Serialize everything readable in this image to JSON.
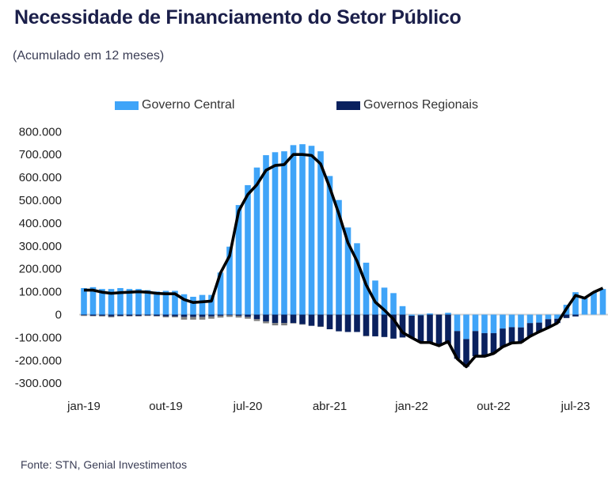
{
  "title": "Necessidade de Financiamento do Setor Público",
  "subtitle": "(Acumulado em 12 meses)",
  "source": "Fonte: STN, Genial Investimentos",
  "chart_data": {
    "type": "bar",
    "stacked": true,
    "title": "Necessidade de Financiamento do Setor Público",
    "subtitle": "(Acumulado em 12 meses)",
    "xlabel": "",
    "ylabel": "",
    "ylim": [
      -300000,
      800000
    ],
    "yticks": [
      "800.000",
      "700.000",
      "600.000",
      "500.000",
      "400.000",
      "300.000",
      "200.000",
      "100.000",
      "0",
      "-100.000",
      "-200.000",
      "-300.000"
    ],
    "ytick_values": [
      800000,
      700000,
      600000,
      500000,
      400000,
      300000,
      200000,
      100000,
      0,
      -100000,
      -200000,
      -300000
    ],
    "xtick_labels": [
      {
        "index": 0,
        "label": "jan-19"
      },
      {
        "index": 9,
        "label": "out-19"
      },
      {
        "index": 18,
        "label": "jul-20"
      },
      {
        "index": 27,
        "label": "abr-21"
      },
      {
        "index": 36,
        "label": "jan-22"
      },
      {
        "index": 45,
        "label": "out-22"
      },
      {
        "index": 54,
        "label": "jul-23"
      }
    ],
    "categories": [
      "jan-19",
      "fev-19",
      "mar-19",
      "abr-19",
      "mai-19",
      "jun-19",
      "jul-19",
      "ago-19",
      "set-19",
      "out-19",
      "nov-19",
      "dez-19",
      "jan-20",
      "fev-20",
      "mar-20",
      "abr-20",
      "mai-20",
      "jun-20",
      "jul-20",
      "ago-20",
      "set-20",
      "out-20",
      "nov-20",
      "dez-20",
      "jan-21",
      "fev-21",
      "mar-21",
      "abr-21",
      "mai-21",
      "jun-21",
      "jul-21",
      "ago-21",
      "set-21",
      "out-21",
      "nov-21",
      "dez-21",
      "jan-22",
      "fev-22",
      "mar-22",
      "abr-22",
      "mai-22",
      "jun-22",
      "jul-22",
      "ago-22",
      "set-22",
      "out-22",
      "nov-22",
      "dez-22",
      "jan-23",
      "fev-23",
      "mar-23",
      "abr-23",
      "mai-23",
      "jun-23",
      "jul-23",
      "ago-23",
      "set-23",
      "out-23"
    ],
    "legend_position": "top",
    "grid": false,
    "series": [
      {
        "name": "Governo Central",
        "type": "bar",
        "color": "#3fa4f8",
        "values": [
          116000,
          120000,
          112000,
          112000,
          116000,
          112000,
          112000,
          107000,
          101000,
          104000,
          104000,
          89000,
          78000,
          86000,
          86000,
          184000,
          297000,
          479000,
          566000,
          643000,
          697000,
          710000,
          714000,
          741000,
          745000,
          738000,
          714000,
          606000,
          501000,
          381000,
          312000,
          227000,
          149000,
          118000,
          94000,
          37000,
          -5000,
          -3000,
          5000,
          0,
          8000,
          -72000,
          -107000,
          -72000,
          -81000,
          -81000,
          -61000,
          -55000,
          -56000,
          -37000,
          -35000,
          -20000,
          -18000,
          43000,
          98000,
          72000,
          98000,
          112000
        ]
      },
      {
        "name": "Governos Regionais",
        "type": "bar",
        "color": "#0a215e",
        "values": [
          -3000,
          -5000,
          -5000,
          -8000,
          -6000,
          -6000,
          -6000,
          -4000,
          -6000,
          -8000,
          -8000,
          -10000,
          -10000,
          -10000,
          -8000,
          -5000,
          -3000,
          -5000,
          -10000,
          -20000,
          -30000,
          -37000,
          -37000,
          -37000,
          -42000,
          -49000,
          -52000,
          -64000,
          -73000,
          -76000,
          -76000,
          -93000,
          -95000,
          -98000,
          -105000,
          -100000,
          -96000,
          -119000,
          -127000,
          -136000,
          -128000,
          -121000,
          -121000,
          -110000,
          -101000,
          -89000,
          -80000,
          -69000,
          -66000,
          -58000,
          -40000,
          -37000,
          -19000,
          -15000,
          -8000,
          0,
          0,
          0
        ]
      },
      {
        "type": "bar",
        "color": "#808080",
        "values": [
          -3000,
          -2000,
          -3000,
          -4000,
          -2000,
          -2000,
          -2000,
          -2000,
          -2000,
          -4000,
          -4000,
          -12000,
          -12000,
          -12000,
          -10000,
          -8000,
          -7000,
          -8000,
          -8000,
          -8000,
          -8000,
          -10000,
          -10000,
          -2000,
          -2000,
          0,
          -2000,
          0,
          0,
          0,
          0,
          -2000,
          0,
          0,
          0,
          0,
          0,
          0,
          0,
          0,
          0,
          0,
          0,
          0,
          0,
          0,
          0,
          0,
          0,
          0,
          0,
          0,
          0,
          0,
          0,
          0,
          0,
          0
        ]
      },
      {
        "type": "line",
        "color": "#000000",
        "values": [
          107000,
          107000,
          98000,
          93000,
          96000,
          98000,
          100000,
          98000,
          93000,
          91000,
          91000,
          66000,
          53000,
          56000,
          59000,
          182000,
          257000,
          453000,
          525000,
          568000,
          631000,
          652000,
          656000,
          700000,
          700000,
          696000,
          659000,
          556000,
          441000,
          314000,
          234000,
          130000,
          55000,
          20000,
          -20000,
          -78000,
          -101000,
          -122000,
          -122000,
          -136000,
          -118000,
          -193000,
          -228000,
          -182000,
          -182000,
          -170000,
          -141000,
          -124000,
          -122000,
          -95000,
          -75000,
          -57000,
          -37000,
          26000,
          84000,
          72000,
          98000,
          116000
        ]
      }
    ]
  }
}
